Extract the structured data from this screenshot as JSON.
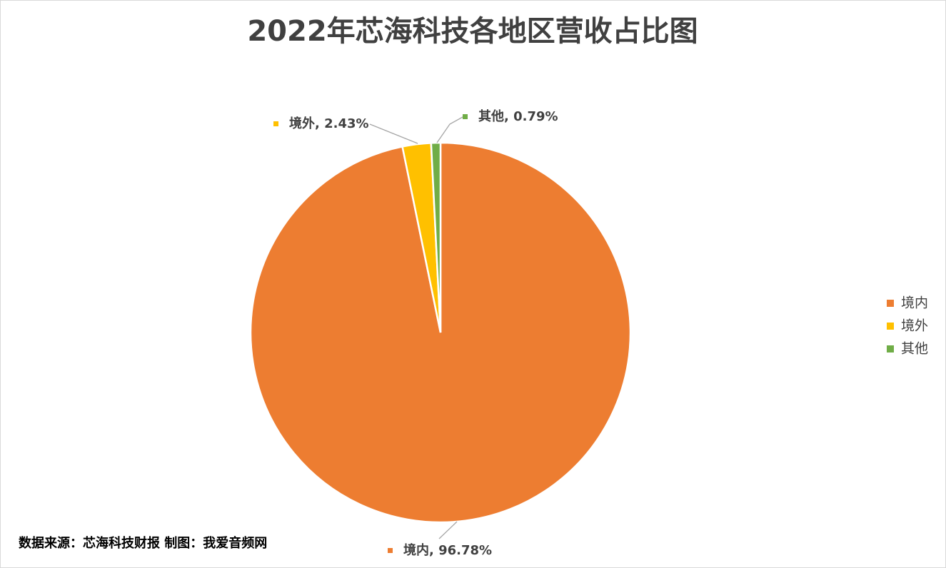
{
  "chart_data": {
    "type": "pie",
    "title": "2022年芯海科技各地区营收占比图",
    "categories": [
      "境内",
      "境外",
      "其他"
    ],
    "values": [
      96.78,
      2.43,
      0.79
    ],
    "value_labels": [
      "境内, 96.78%",
      "境外, 2.43%",
      "其他, 0.79%"
    ],
    "colors": [
      "#ED7D31",
      "#FFC000",
      "#70AD47"
    ],
    "legend": "right",
    "source": "数据来源：芯海科技财报   制图：我爱音频网"
  }
}
